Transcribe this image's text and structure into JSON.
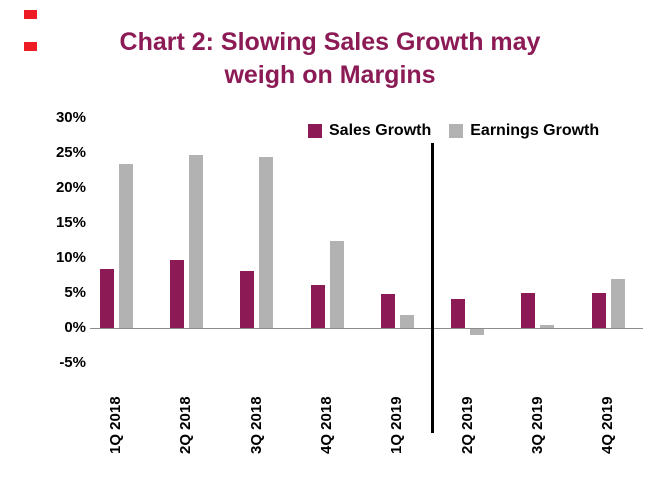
{
  "title_line1": "Chart 2: Slowing Sales Growth may",
  "title_line2": "weigh on Margins",
  "colors": {
    "accent": "#8B1A55",
    "sales_bar": "#8B1A55",
    "earnings_bar": "#B2B2B2",
    "divider": "#000000",
    "red_mark": "#ED1C24"
  },
  "legend": [
    {
      "label": "Sales Growth",
      "color": "#8B1A55"
    },
    {
      "label": "Earnings Growth",
      "color": "#B2B2B2"
    }
  ],
  "chart_data": {
    "type": "bar",
    "title": "Chart 2: Slowing Sales Growth may weigh on Margins",
    "categories": [
      "1Q 2018",
      "2Q 2018",
      "3Q 2018",
      "4Q 2018",
      "1Q 2019",
      "2Q 2019",
      "3Q 2019",
      "4Q 2019"
    ],
    "series": [
      {
        "name": "Sales Growth",
        "color": "#8B1A55",
        "values": [
          8.5,
          9.7,
          8.2,
          6.2,
          4.8,
          4.2,
          5.0,
          5.0
        ]
      },
      {
        "name": "Earnings Growth",
        "color": "#B2B2B2",
        "values": [
          23.4,
          24.7,
          24.5,
          12.5,
          1.8,
          -0.8,
          0.5,
          7.0
        ]
      }
    ],
    "y_ticks": [
      "30%",
      "25%",
      "20%",
      "15%",
      "10%",
      "5%",
      "0%",
      "-5%"
    ],
    "ylim": [
      -5,
      30
    ],
    "xlabel": "",
    "ylabel": "",
    "grid": false,
    "legend_position": "top-right",
    "divider_after_category": "1Q 2019"
  }
}
